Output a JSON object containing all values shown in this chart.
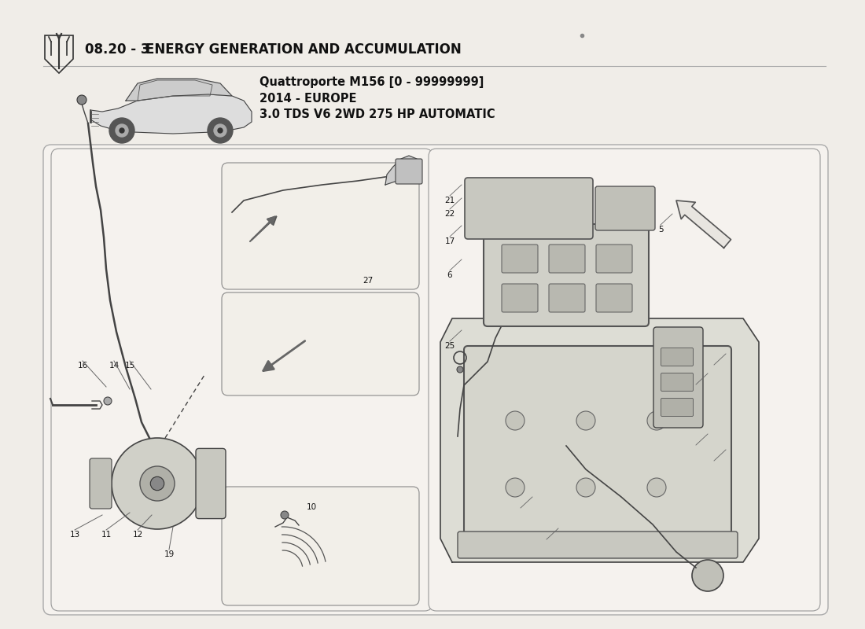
{
  "title_number": "08.20 - 3",
  "title_text": "ENERGY GENERATION AND ACCUMULATION",
  "car_model_line1": "Quattroporte M156 [0 - 99999999]",
  "car_model_line2": "2014 - EUROPE",
  "car_model_line3": "3.0 TDS V6 2WD 275 HP AUTOMATIC",
  "bg_color": "#f0ede8",
  "box_facecolor": "#f5f2ee",
  "box_edge_color": "#999999",
  "text_color": "#111111",
  "line_color": "#333333",
  "title_fontsize": 12,
  "subtitle_fontsize": 10.5,
  "part_label_fontsize": 7.5
}
